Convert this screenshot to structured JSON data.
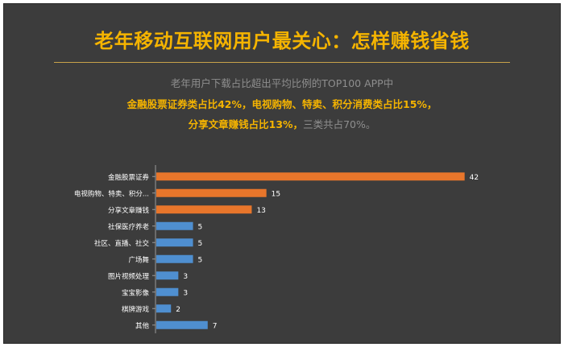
{
  "title": "老年移动互联网用户最关心：怎样赚钱省钱",
  "subtitle": {
    "line1": "老年用户下载占比超出平均比例的TOP100  APP中",
    "line2": "金融股票证券类占比42%，电视购物、特卖、积分消费类占比15%，",
    "line3_highlight": "分享文章赚钱占比13%，",
    "line3_rest": "三类共占70%。"
  },
  "colors": {
    "background": "#3c3c3c",
    "title": "#f5b400",
    "highlight_bar": "#e8762b",
    "normal_bar": "#4f8fd0",
    "axis": "#9a9a9a",
    "label": "#ffffff"
  },
  "chart_data": {
    "type": "bar",
    "orientation": "horizontal",
    "categories": [
      "金融股票证券",
      "电视购物、特卖、积分...",
      "分享文章赚钱",
      "社保医疗养老",
      "社区、直播、社交",
      "广场舞",
      "图片视频处理",
      "宝宝影像",
      "棋牌游戏",
      "其他"
    ],
    "values": [
      42,
      15,
      13,
      5,
      5,
      5,
      3,
      3,
      2,
      7
    ],
    "highlight": [
      true,
      true,
      true,
      false,
      false,
      false,
      false,
      false,
      false,
      false
    ],
    "xlim": [
      0,
      45
    ],
    "data_labels": true,
    "grid": false
  }
}
